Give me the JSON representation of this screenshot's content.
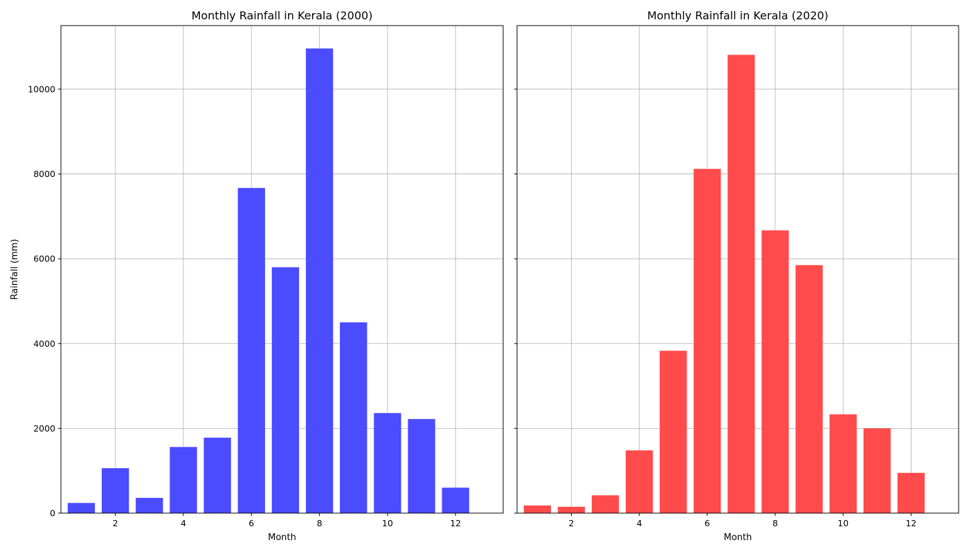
{
  "chart_data": [
    {
      "type": "bar",
      "title": "Monthly Rainfall in Kerala (2000)",
      "xlabel": "Month",
      "ylabel": "Rainfall (mm)",
      "x": [
        1,
        2,
        3,
        4,
        5,
        6,
        7,
        8,
        9,
        10,
        11,
        12
      ],
      "values": [
        240,
        1060,
        360,
        1560,
        1780,
        7670,
        5800,
        10960,
        4500,
        2360,
        2220,
        600
      ],
      "color": "#4b4bff",
      "xlim": [
        0.4,
        13.4
      ],
      "ylim": [
        0,
        11500
      ],
      "xticks": [
        2,
        4,
        6,
        8,
        10,
        12
      ],
      "yticks": [
        0,
        2000,
        4000,
        6000,
        8000,
        10000
      ],
      "grid": true
    },
    {
      "type": "bar",
      "title": "Monthly Rainfall in Kerala (2020)",
      "xlabel": "Month",
      "ylabel": "",
      "x": [
        1,
        2,
        3,
        4,
        5,
        6,
        7,
        8,
        9,
        10,
        11,
        12
      ],
      "values": [
        180,
        150,
        420,
        1480,
        3830,
        8120,
        10810,
        6670,
        5850,
        2330,
        2000,
        950
      ],
      "color": "#ff4b4b",
      "xlim": [
        0.4,
        13.4
      ],
      "ylim": [
        0,
        11500
      ],
      "xticks": [
        2,
        4,
        6,
        8,
        10,
        12
      ],
      "yticks": [
        0,
        2000,
        4000,
        6000,
        8000,
        10000
      ],
      "grid": true
    }
  ]
}
